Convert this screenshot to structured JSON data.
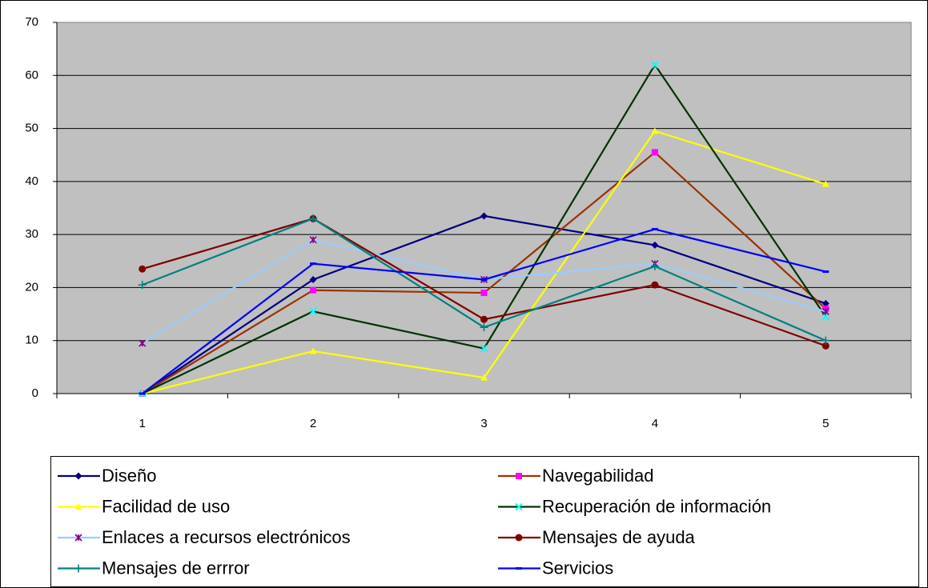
{
  "chart_data": {
    "type": "line",
    "categories": [
      1,
      2,
      3,
      4,
      5
    ],
    "ylim": [
      0,
      70
    ],
    "yticks": [
      0,
      10,
      20,
      30,
      40,
      50,
      60,
      70
    ],
    "grid": true,
    "legend": "bottom",
    "series": [
      {
        "name": "Diseño",
        "color": "#000080",
        "marker_color": "#000080",
        "marker": "diamond",
        "values": [
          0,
          21.5,
          33.5,
          28,
          17
        ]
      },
      {
        "name": "Navegabilidad",
        "color": "#993300",
        "marker_color": "#FF00FF",
        "marker": "square",
        "values": [
          0,
          19.5,
          19,
          45.5,
          16
        ]
      },
      {
        "name": "Facilidad de uso",
        "color": "#FFFF00",
        "marker_color": "#FFFF00",
        "marker": "triangle",
        "values": [
          0,
          8,
          3,
          49.5,
          39.5
        ]
      },
      {
        "name": "Recuperación de información",
        "color": "#003300",
        "marker_color": "#00FFFF",
        "marker": "x",
        "values": [
          0,
          15.5,
          8.5,
          62,
          14.5
        ]
      },
      {
        "name": "Enlaces a recursos electrónicos",
        "color": "#99CCFF",
        "marker_color": "#800080",
        "marker": "asterisk",
        "values": [
          9.5,
          29,
          21.5,
          24.5,
          15.5
        ]
      },
      {
        "name": "Mensajes de ayuda",
        "color": "#800000",
        "marker_color": "#800000",
        "marker": "circle",
        "values": [
          23.5,
          33,
          14,
          20.5,
          9
        ]
      },
      {
        "name": "Mensajes de errror",
        "color": "#008080",
        "marker_color": "#008080",
        "marker": "plus",
        "values": [
          20.5,
          33,
          12.5,
          24,
          10
        ]
      },
      {
        "name": "Servicios",
        "color": "#0000FF",
        "marker_color": "#0000FF",
        "marker": "dash",
        "values": [
          0,
          24.5,
          21.5,
          31,
          23
        ]
      }
    ]
  }
}
